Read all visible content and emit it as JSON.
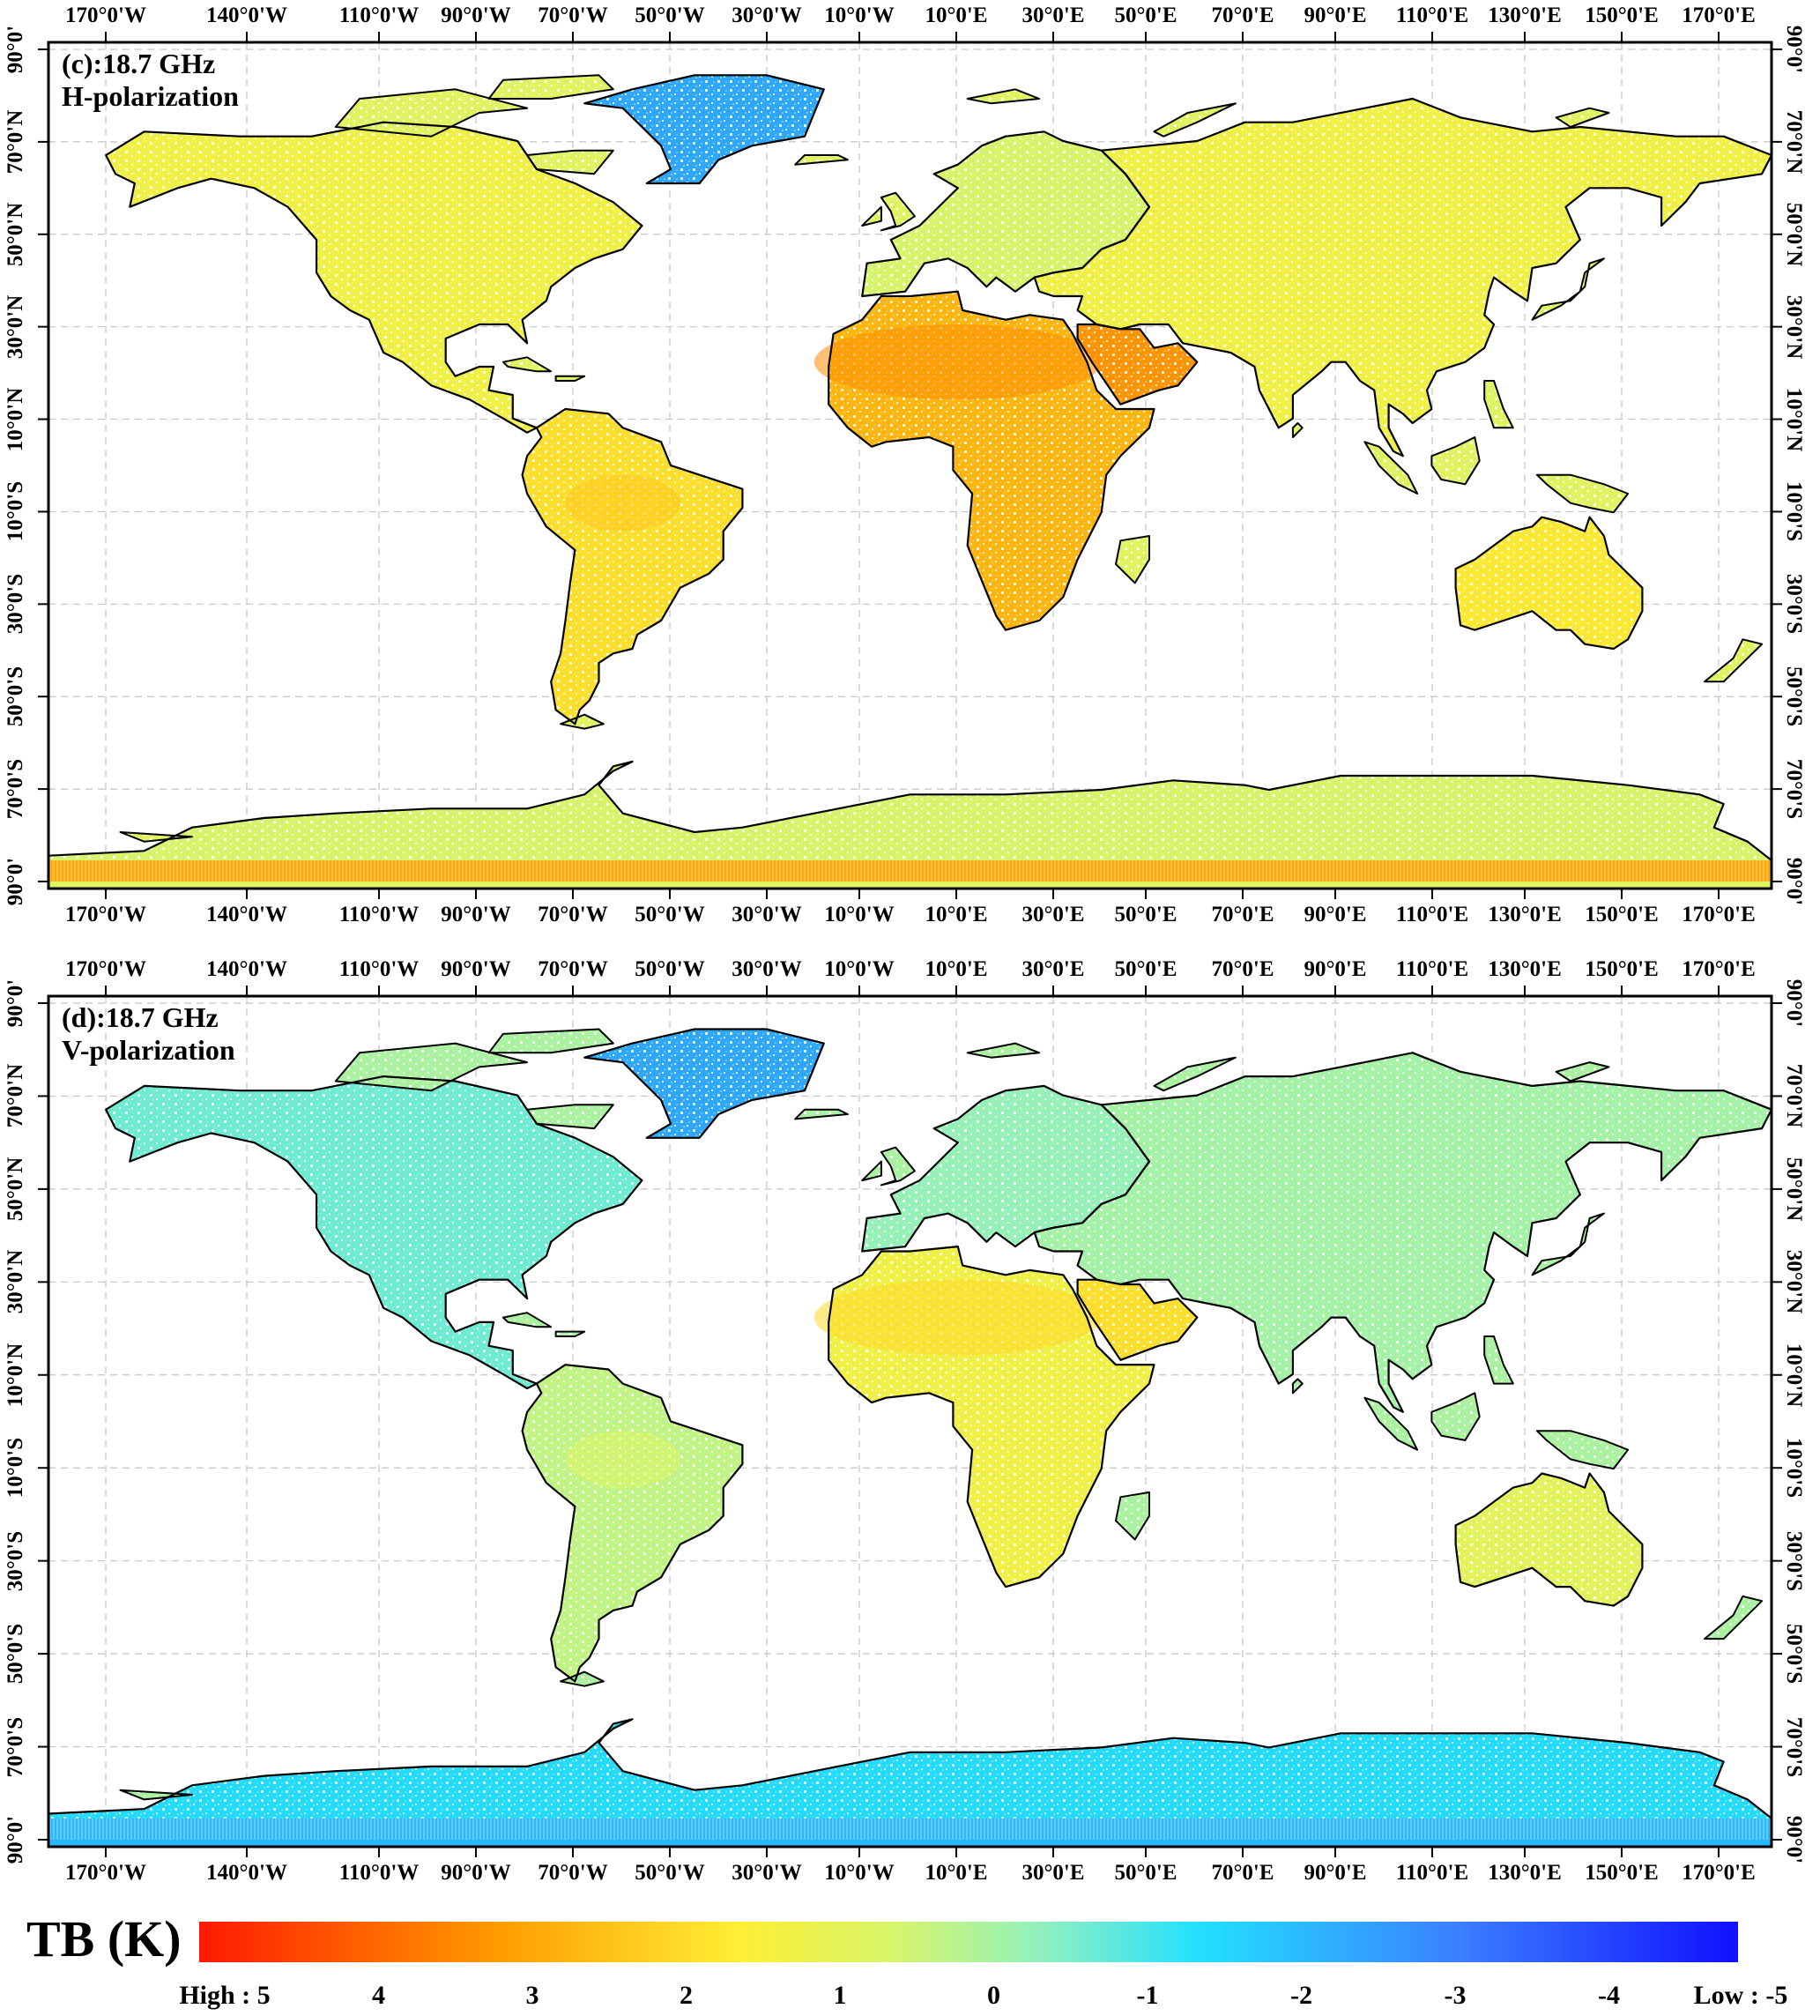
{
  "colors": {
    "high": "#ff1a00",
    "orange": "#ffa000",
    "yellow": "#ffee33",
    "lime": "#d8f56a",
    "mint": "#8ef0c0",
    "cyan": "#22e0ff",
    "blue": "#3a7fff",
    "low": "#1010ff"
  },
  "lon_labels": [
    "170°0'W",
    "140°0'W",
    "110°0'W",
    "90°0'W",
    "70°0'W",
    "50°0'W",
    "30°0'W",
    "10°0'W",
    "10°0'E",
    "30°0'E",
    "50°0'E",
    "70°0'E",
    "90°0'E",
    "110°0'E",
    "130°0'E",
    "150°0'E",
    "170°0'E"
  ],
  "lat_labels": [
    "90°0'",
    "70°0'N",
    "50°0'N",
    "30°0'N",
    "10°0'N",
    "10°0'S",
    "30°0'S",
    "50°0'S",
    "70°0'S",
    "90°0'"
  ],
  "panels": [
    {
      "id": "c",
      "title_line1": "(c):18.7 GHz",
      "title_line2": "H-polarization",
      "region_means_K": {
        "greenland": -2.5,
        "north_america": 1.2,
        "south_america": 1.8,
        "africa": 2.6,
        "arabia": 3.2,
        "europe": 0.5,
        "asia": 1.2,
        "australia": 1.6,
        "antarctica": 0.5,
        "antarctic_interior": 2.8
      }
    },
    {
      "id": "d",
      "title_line1": "(d):18.7 GHz",
      "title_line2": "V-polarization",
      "region_means_K": {
        "greenland": -2.5,
        "north_america": -0.8,
        "south_america": 0.2,
        "africa": 1.2,
        "arabia": 1.8,
        "europe": -0.4,
        "asia": -0.2,
        "australia": 0.8,
        "antarctica": -1.6,
        "antarctic_interior": -2.2
      }
    }
  ],
  "legend": {
    "title": "TB (K)",
    "min": -5,
    "max": 5,
    "ticks": [
      {
        "label": "High : 5",
        "value": 5
      },
      {
        "label": "4",
        "value": 4
      },
      {
        "label": "3",
        "value": 3
      },
      {
        "label": "2",
        "value": 2
      },
      {
        "label": "1",
        "value": 1
      },
      {
        "label": "0",
        "value": 0
      },
      {
        "label": "-1",
        "value": -1
      },
      {
        "label": "-2",
        "value": -2
      },
      {
        "label": "-3",
        "value": -3
      },
      {
        "label": "-4",
        "value": -4
      },
      {
        "label": "Low : -5",
        "value": -5
      }
    ]
  }
}
